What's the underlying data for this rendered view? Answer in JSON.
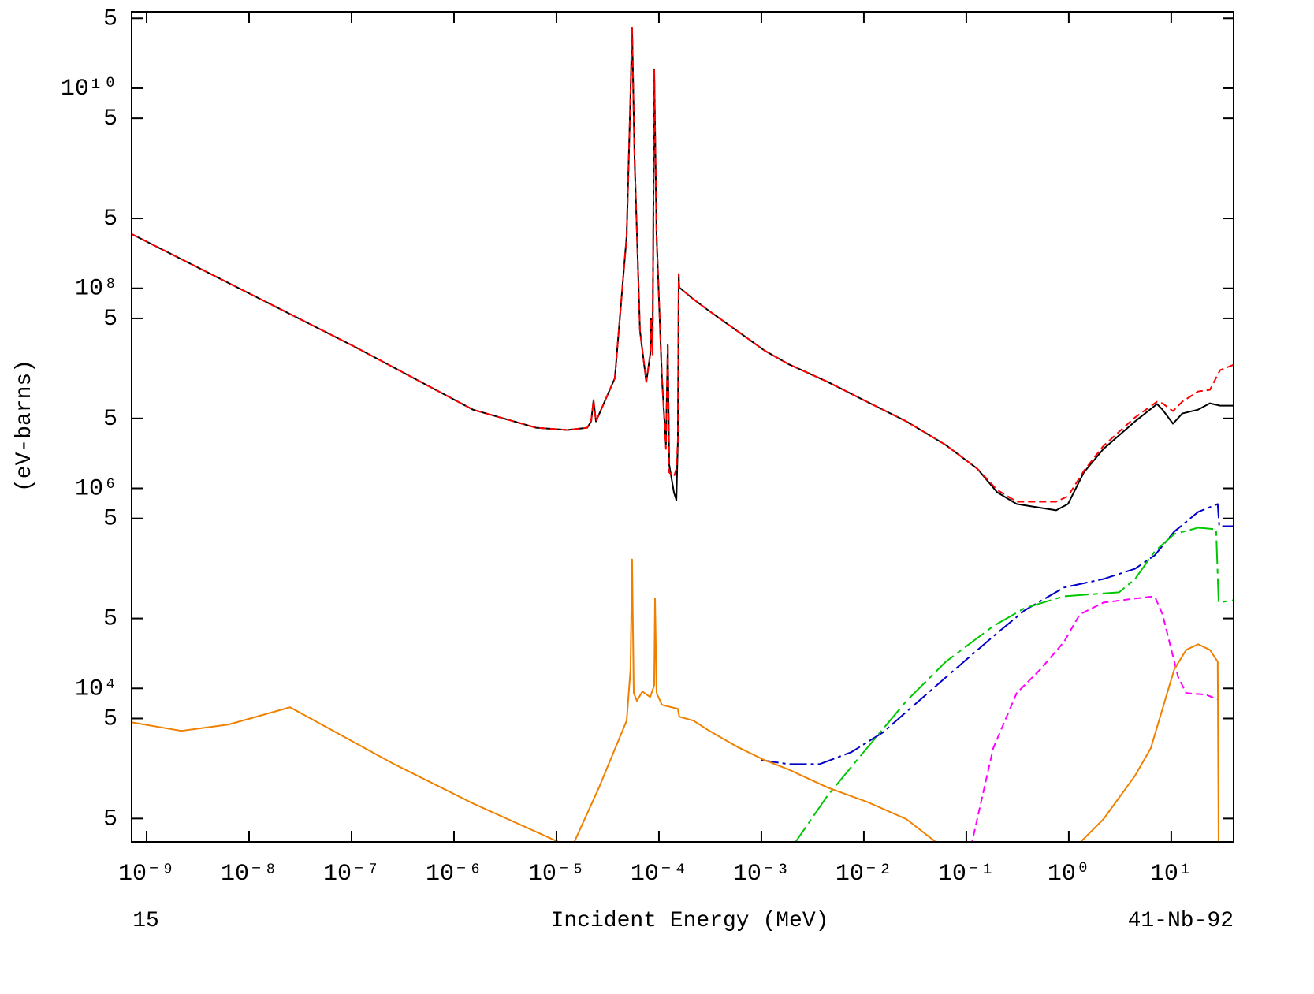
{
  "chart_data": {
    "type": "line",
    "x_label": "Incident Energy (MeV)",
    "y_label": "(eV-barns)",
    "footer_left": "15",
    "footer_right": "41-Nb-92",
    "xlog": true,
    "ylog": true,
    "xlim": [
      7.14e-10,
      40.6
    ],
    "ylim": [
      292,
      58100000000.0
    ],
    "xticks": [
      {
        "value": 1e-09,
        "label": "10⁻⁹"
      },
      {
        "value": 1e-08,
        "label": "10⁻⁸"
      },
      {
        "value": 1e-07,
        "label": "10⁻⁷"
      },
      {
        "value": 1e-06,
        "label": "10⁻⁶"
      },
      {
        "value": 1e-05,
        "label": "10⁻⁵"
      },
      {
        "value": 0.0001,
        "label": "10⁻⁴"
      },
      {
        "value": 0.001,
        "label": "10⁻³"
      },
      {
        "value": 0.01,
        "label": "10⁻²"
      },
      {
        "value": 0.1,
        "label": "10⁻¹"
      },
      {
        "value": 1,
        "label": "10⁰"
      },
      {
        "value": 10,
        "label": "10¹"
      }
    ],
    "yticks": [
      {
        "value": 50000000000.0,
        "label": "5"
      },
      {
        "value": 10000000000.0,
        "label": "10¹⁰"
      },
      {
        "value": 5000000000.0,
        "label": "5"
      },
      {
        "value": 500000000.0,
        "label": "5"
      },
      {
        "value": 100000000.0,
        "label": "10⁸"
      },
      {
        "value": 50000000.0,
        "label": "5"
      },
      {
        "value": 5000000.0,
        "label": "5"
      },
      {
        "value": 1000000.0,
        "label": "10⁶"
      },
      {
        "value": 500000.0,
        "label": "5"
      },
      {
        "value": 50000.0,
        "label": "5"
      },
      {
        "value": 10000.0,
        "label": "10⁴"
      },
      {
        "value": 5000.0,
        "label": "5"
      },
      {
        "value": 500.0,
        "label": "5"
      }
    ],
    "series": [
      {
        "color": "#000000",
        "style": "solid",
        "x": [
          7.14e-10,
          1.07e-07,
          1.53e-06,
          6.31e-06,
          1.28e-05,
          2e-05,
          2.18e-05,
          2.3e-05,
          2.43e-05,
          3.71e-05,
          4.84e-05,
          5.28e-05,
          5.47e-05,
          5.78e-05,
          6.53e-05,
          7.53e-05,
          8.22e-05,
          8.37e-05,
          8.67e-05,
          8.99e-05,
          9.49e-05,
          0.000107,
          0.000117,
          0.000122,
          0.000126,
          0.00014,
          0.000148,
          0.000153,
          0.000156,
          0.000158,
          0.000218,
          0.00031,
          0.000578,
          0.00107,
          0.00183,
          0.00443,
          0.0107,
          0.026,
          0.0631,
          0.128,
          0.2,
          0.31,
          0.753,
          0.982,
          1.4,
          2.18,
          4.43,
          7.27,
          8.22,
          10.4,
          12.8,
          18.3,
          23.8,
          30.0,
          40.6
        ],
        "values": [
          349000000.0,
          26100000.0,
          6120000.0,
          4040000.0,
          3830000.0,
          4040000.0,
          4670000.0,
          7620000.0,
          4670000.0,
          12600000.0,
          331000000.0,
          8650000000.0,
          40400000000.0,
          2030000000.0,
          37600000.0,
          11600000.0,
          21800000.0,
          49300000.0,
          21800000.0,
          15500000000.0,
          331000000.0,
          12600000.0,
          2710000.0,
          27100000.0,
          1720000.0,
          914000.0,
          762000.0,
          2960000.0,
          139000000.0,
          102000000.0,
          77600000.0,
          59200000.0,
          37600000.0,
          23900000.0,
          17500000.0,
          11600000.0,
          7350000.0,
          4670000.0,
          2710000.0,
          1570000.0,
          914000.0,
          697000.0,
          603000.0,
          697000.0,
          1440000.0,
          2480000.0,
          4670000.0,
          6970000.0,
          6120000.0,
          4430000.0,
          5600000.0,
          6120000.0,
          7080000.0,
          6710000.0,
          6710000.0
        ]
      },
      {
        "color": "#ff0000",
        "style": "dashed",
        "x": [
          7.14e-10,
          1.07e-07,
          1.53e-06,
          6.31e-06,
          1.28e-05,
          2e-05,
          2.18e-05,
          2.3e-05,
          2.43e-05,
          3.71e-05,
          4.84e-05,
          5.28e-05,
          5.47e-05,
          5.78e-05,
          6.53e-05,
          7.53e-05,
          8.22e-05,
          8.37e-05,
          8.67e-05,
          8.99e-05,
          9.49e-05,
          0.000107,
          0.000117,
          0.000122,
          0.000126,
          0.00014,
          0.000148,
          0.000153,
          0.000156,
          0.000158,
          0.000218,
          0.00031,
          0.000578,
          0.00107,
          0.00183,
          0.00443,
          0.0107,
          0.026,
          0.0631,
          0.128,
          0.2,
          0.31,
          0.753,
          0.982,
          1.4,
          2.18,
          4.43,
          7.27,
          8.22,
          10.4,
          12.8,
          18.3,
          23.8,
          30.0,
          40.6
        ],
        "values": [
          349000000.0,
          26100000.0,
          6120000.0,
          4040000.0,
          3830000.0,
          4040000.0,
          4670000.0,
          7620000.0,
          4670000.0,
          12600000.0,
          331000000.0,
          8650000000.0,
          40400000000.0,
          2030000000.0,
          37600000.0,
          11600000.0,
          21800000.0,
          49300000.0,
          21800000.0,
          15500000000.0,
          331000000.0,
          12600000.0,
          2480000.0,
          27100000.0,
          1440000.0,
          1310000.0,
          1570000.0,
          2960000.0,
          139000000.0,
          102000000.0,
          77600000.0,
          59200000.0,
          37600000.0,
          23900000.0,
          17500000.0,
          11600000.0,
          7350000.0,
          4670000.0,
          2710000.0,
          1570000.0,
          964000.0,
          735000.0,
          735000.0,
          834000.0,
          1490000.0,
          2660000.0,
          5120000.0,
          7350000.0,
          7080000.0,
          5920000.0,
          7350000.0,
          9310000.0,
          9640000.0,
          15200000.0,
          17200000.0
        ]
      },
      {
        "color": "#0000c8",
        "style": "dash-dot",
        "x": [
          0.001,
          0.00183,
          0.00371,
          0.00753,
          0.0153,
          0.0631,
          0.183,
          0.371,
          0.899,
          2.18,
          4.43,
          6.89,
          10.7,
          18.3,
          28.4,
          29.4,
          40.6
        ],
        "values": [
          1920.0,
          1750.0,
          1750.0,
          2300.0,
          3620.0,
          12900.0,
          33100.0,
          60300.0,
          102000.0,
          124000.0,
          157000.0,
          214000.0,
          369000.0,
          581000.0,
          697000.0,
          419000.0,
          419000.0
        ]
      },
      {
        "color": "#00c800",
        "style": "long-dash-dot",
        "x": [
          0.002,
          0.00443,
          0.0107,
          0.026,
          0.0631,
          0.183,
          0.371,
          0.899,
          3.1,
          4.43,
          6.89,
          10.7,
          18.3,
          27.4,
          29.0,
          40.6
        ],
        "values": [
          261,
          849,
          2520.0,
          7480.0,
          18500.0,
          41900.0,
          63500.0,
          83400.0,
          91400.0,
          124000.0,
          234000.0,
          349000.0,
          404000.0,
          390000.0,
          72100.0,
          76200.0
        ]
      },
      {
        "color": "#ff00ff",
        "style": "dashed",
        "x": [
          0.111,
          0.183,
          0.31,
          0.528,
          0.899,
          1.28,
          2.18,
          4.43,
          6.89,
          8.22,
          11.7,
          14.0,
          21.8,
          28.4
        ],
        "values": [
          261,
          2520.0,
          8970.0,
          15500.0,
          29200.0,
          55000.0,
          72100.0,
          79100.0,
          83400.0,
          55000.0,
          12900.0,
          8970.0,
          8650.0,
          7760.0
        ]
      },
      {
        "color": "#f08000",
        "style": "solid",
        "x": [
          7.14e-10,
          2.18e-09,
          6.31e-09,
          2.51e-08,
          2.6e-07,
          1.53e-06,
          1.33e-05,
          1.48e-05,
          2.6e-05,
          4.84e-05,
          5.28e-05,
          5.47e-05,
          5.68e-05,
          6.1e-05,
          6.89e-05,
          8.22e-05,
          8.99e-05,
          9.16e-05,
          9.49e-05,
          0.000107,
          0.000153,
          0.000158,
          0.000218,
          0.00031,
          0.000578,
          0.00107,
          0.00183,
          0.00443,
          0.0107,
          0.026,
          0.0578,
          null,
          1.17,
          2.18,
          4.43,
          6.31,
          10.7,
          14.0,
          18.3,
          23.8,
          28.4,
          29.0
        ],
        "values": [
          4580.0,
          3760.0,
          4350.0,
          6470.0,
          1750.0,
          708,
          261,
          286,
          1020.0,
          4750.0,
          15500.0,
          195000.0,
          8970.0,
          7480.0,
          9310.0,
          8180.0,
          10700.0,
          79100.0,
          8970.0,
          6840.0,
          6240.0,
          5210.0,
          4750.0,
          3760.0,
          2610.0,
          1920.0,
          1550.0,
          1020.0,
          735,
          493,
          261,
          null,
          261,
          493,
          1340.0,
          2520.0,
          15500.0,
          24300.0,
          27600.0,
          24300.0,
          18500.0,
          261
        ]
      }
    ]
  }
}
